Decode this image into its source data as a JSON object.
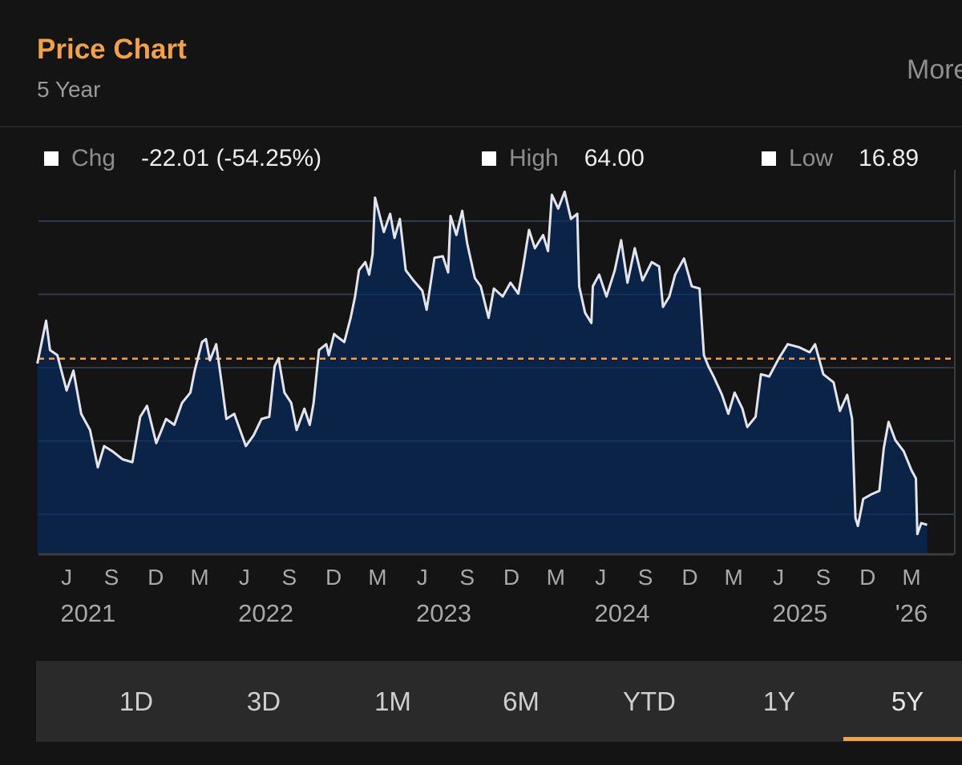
{
  "header": {
    "title": "Price Chart",
    "subtitle": "5 Year",
    "more_label": "More"
  },
  "stats": [
    {
      "label": "Chg",
      "value": "-22.01 (-54.25%)"
    },
    {
      "label": "High",
      "value": "64.00"
    },
    {
      "label": "Low",
      "value": "16.89"
    }
  ],
  "tabs": [
    {
      "label": "1D",
      "active": false
    },
    {
      "label": "3D",
      "active": false
    },
    {
      "label": "1M",
      "active": false
    },
    {
      "label": "6M",
      "active": false
    },
    {
      "label": "YTD",
      "active": false
    },
    {
      "label": "1Y",
      "active": false
    },
    {
      "label": "5Y",
      "active": true
    }
  ],
  "colors": {
    "accent": "#f2a04a",
    "line": "#e4e4ec",
    "fill": "#0b2347",
    "background": "#141414",
    "reference_line": "#f2a04a"
  },
  "chart_data": {
    "type": "area",
    "title": "",
    "xlabel": "",
    "ylabel": "",
    "ylim": [
      14.4,
      65.5
    ],
    "xlim": [
      "2021-04-01",
      "2026-04-02"
    ],
    "grid": true,
    "y_gridlines": [
      20,
      30,
      40,
      50,
      60
    ],
    "reference_line": 40.57,
    "x_ticks": [
      {
        "date": "2021-06-01",
        "label": "J"
      },
      {
        "date": "2021-09-01",
        "label": "S"
      },
      {
        "date": "2021-12-01",
        "label": "D"
      },
      {
        "date": "2022-03-01",
        "label": "M"
      },
      {
        "date": "2022-06-01",
        "label": "J"
      },
      {
        "date": "2022-09-01",
        "label": "S"
      },
      {
        "date": "2022-12-01",
        "label": "D"
      },
      {
        "date": "2023-03-01",
        "label": "M"
      },
      {
        "date": "2023-06-01",
        "label": "J"
      },
      {
        "date": "2023-09-01",
        "label": "S"
      },
      {
        "date": "2023-12-01",
        "label": "D"
      },
      {
        "date": "2024-03-01",
        "label": "M"
      },
      {
        "date": "2024-06-01",
        "label": "J"
      },
      {
        "date": "2024-09-01",
        "label": "S"
      },
      {
        "date": "2024-12-01",
        "label": "D"
      },
      {
        "date": "2025-03-01",
        "label": "M"
      },
      {
        "date": "2025-06-01",
        "label": "J"
      },
      {
        "date": "2025-09-01",
        "label": "S"
      },
      {
        "date": "2025-12-01",
        "label": "D"
      },
      {
        "date": "2026-03-01",
        "label": "M"
      }
    ],
    "year_labels": [
      {
        "date": "2021-07-15",
        "label": "2021"
      },
      {
        "date": "2022-07-15",
        "label": "2022"
      },
      {
        "date": "2023-07-15",
        "label": "2023"
      },
      {
        "date": "2024-07-15",
        "label": "2024"
      },
      {
        "date": "2025-07-15",
        "label": "2025"
      },
      {
        "date": "2026-03-01",
        "label": "'26"
      }
    ],
    "series": [
      {
        "points": [
          [
            "2021-04-02",
            40.57
          ],
          [
            "2021-04-20",
            46.4
          ],
          [
            "2021-04-28",
            42.4
          ],
          [
            "2021-05-13",
            41.7
          ],
          [
            "2021-06-01",
            36.9
          ],
          [
            "2021-06-15",
            39.6
          ],
          [
            "2021-07-01",
            33.7
          ],
          [
            "2021-07-19",
            31.5
          ],
          [
            "2021-08-04",
            26.4
          ],
          [
            "2021-08-17",
            29.3
          ],
          [
            "2021-09-03",
            28.6
          ],
          [
            "2021-09-24",
            27.5
          ],
          [
            "2021-10-14",
            27.1
          ],
          [
            "2021-10-30",
            33.3
          ],
          [
            "2021-11-13",
            34.8
          ],
          [
            "2021-12-02",
            29.7
          ],
          [
            "2021-12-22",
            33.0
          ],
          [
            "2022-01-08",
            32.2
          ],
          [
            "2022-01-24",
            35.2
          ],
          [
            "2022-02-10",
            36.6
          ],
          [
            "2022-02-19",
            39.6
          ],
          [
            "2022-03-06",
            43.5
          ],
          [
            "2022-03-14",
            43.9
          ],
          [
            "2022-03-22",
            41.0
          ],
          [
            "2022-04-04",
            43.2
          ],
          [
            "2022-04-15",
            38.0
          ],
          [
            "2022-04-25",
            33.0
          ],
          [
            "2022-05-11",
            33.7
          ],
          [
            "2022-06-04",
            29.3
          ],
          [
            "2022-06-20",
            30.8
          ],
          [
            "2022-07-06",
            33.0
          ],
          [
            "2022-07-22",
            33.3
          ],
          [
            "2022-08-02",
            40.2
          ],
          [
            "2022-08-10",
            41.3
          ],
          [
            "2022-08-22",
            36.6
          ],
          [
            "2022-09-05",
            35.2
          ],
          [
            "2022-09-16",
            31.5
          ],
          [
            "2022-10-02",
            34.4
          ],
          [
            "2022-10-13",
            32.2
          ],
          [
            "2022-10-21",
            35.2
          ],
          [
            "2022-11-01",
            42.4
          ],
          [
            "2022-11-16",
            43.2
          ],
          [
            "2022-11-21",
            41.7
          ],
          [
            "2022-12-02",
            44.6
          ],
          [
            "2022-12-07",
            44.3
          ],
          [
            "2022-12-23",
            43.5
          ],
          [
            "2023-01-05",
            46.8
          ],
          [
            "2023-01-14",
            49.7
          ],
          [
            "2023-01-22",
            53.3
          ],
          [
            "2023-02-04",
            54.4
          ],
          [
            "2023-02-12",
            52.7
          ],
          [
            "2023-02-19",
            55.5
          ],
          [
            "2023-02-24",
            63.2
          ],
          [
            "2023-03-03",
            61.4
          ],
          [
            "2023-03-14",
            58.5
          ],
          [
            "2023-03-27",
            61.0
          ],
          [
            "2023-04-05",
            57.7
          ],
          [
            "2023-04-16",
            60.3
          ],
          [
            "2023-04-28",
            53.3
          ],
          [
            "2023-05-14",
            51.9
          ],
          [
            "2023-06-01",
            50.5
          ],
          [
            "2023-06-10",
            47.9
          ],
          [
            "2023-06-26",
            55.0
          ],
          [
            "2023-07-13",
            55.2
          ],
          [
            "2023-07-24",
            53.0
          ],
          [
            "2023-07-29",
            60.7
          ],
          [
            "2023-08-10",
            58.1
          ],
          [
            "2023-08-22",
            61.4
          ],
          [
            "2023-09-01",
            57.0
          ],
          [
            "2023-09-17",
            52.2
          ],
          [
            "2023-09-29",
            51.1
          ],
          [
            "2023-10-15",
            46.8
          ],
          [
            "2023-10-26",
            50.8
          ],
          [
            "2023-11-13",
            49.7
          ],
          [
            "2023-11-29",
            51.6
          ],
          [
            "2023-12-15",
            50.1
          ],
          [
            "2023-12-25",
            53.8
          ],
          [
            "2024-01-06",
            58.8
          ],
          [
            "2024-01-18",
            56.3
          ],
          [
            "2024-02-04",
            58.1
          ],
          [
            "2024-02-14",
            55.9
          ],
          [
            "2024-02-22",
            63.6
          ],
          [
            "2024-03-06",
            61.7
          ],
          [
            "2024-03-19",
            64.0
          ],
          [
            "2024-04-01",
            60.3
          ],
          [
            "2024-04-14",
            61.0
          ],
          [
            "2024-04-18",
            51.1
          ],
          [
            "2024-04-30",
            47.5
          ],
          [
            "2024-05-13",
            46.1
          ],
          [
            "2024-05-16",
            51.1
          ],
          [
            "2024-05-29",
            52.7
          ],
          [
            "2024-06-13",
            49.7
          ],
          [
            "2024-06-30",
            53.3
          ],
          [
            "2024-07-13",
            57.4
          ],
          [
            "2024-07-26",
            51.6
          ],
          [
            "2024-08-10",
            56.3
          ],
          [
            "2024-08-26",
            51.9
          ],
          [
            "2024-09-14",
            54.4
          ],
          [
            "2024-09-29",
            53.8
          ],
          [
            "2024-10-07",
            48.3
          ],
          [
            "2024-10-20",
            49.7
          ],
          [
            "2024-11-01",
            52.7
          ],
          [
            "2024-11-19",
            54.9
          ],
          [
            "2024-12-05",
            51.1
          ],
          [
            "2024-12-21",
            50.8
          ],
          [
            "2024-12-30",
            41.7
          ],
          [
            "2025-01-08",
            40.2
          ],
          [
            "2025-01-19",
            38.8
          ],
          [
            "2025-02-05",
            36.3
          ],
          [
            "2025-02-18",
            33.7
          ],
          [
            "2025-03-03",
            36.6
          ],
          [
            "2025-03-19",
            34.4
          ],
          [
            "2025-03-29",
            31.9
          ],
          [
            "2025-04-15",
            33.3
          ],
          [
            "2025-04-26",
            39.1
          ],
          [
            "2025-05-13",
            38.8
          ],
          [
            "2025-06-02",
            41.3
          ],
          [
            "2025-06-20",
            43.2
          ],
          [
            "2025-07-13",
            42.8
          ],
          [
            "2025-08-04",
            42.1
          ],
          [
            "2025-08-15",
            43.2
          ],
          [
            "2025-09-01",
            39.1
          ],
          [
            "2025-09-22",
            38.0
          ],
          [
            "2025-10-05",
            34.1
          ],
          [
            "2025-10-20",
            36.3
          ],
          [
            "2025-10-30",
            33.0
          ],
          [
            "2025-11-06",
            19.5
          ],
          [
            "2025-11-11",
            18.4
          ],
          [
            "2025-11-22",
            22.1
          ],
          [
            "2025-12-08",
            22.7
          ],
          [
            "2025-12-25",
            23.2
          ],
          [
            "2026-01-03",
            29.0
          ],
          [
            "2026-01-13",
            32.6
          ],
          [
            "2026-01-27",
            30.1
          ],
          [
            "2026-02-13",
            28.6
          ],
          [
            "2026-03-01",
            26.0
          ],
          [
            "2026-03-10",
            24.9
          ],
          [
            "2026-03-13",
            17.3
          ],
          [
            "2026-03-21",
            18.8
          ],
          [
            "2026-04-02",
            18.56
          ]
        ]
      }
    ]
  }
}
